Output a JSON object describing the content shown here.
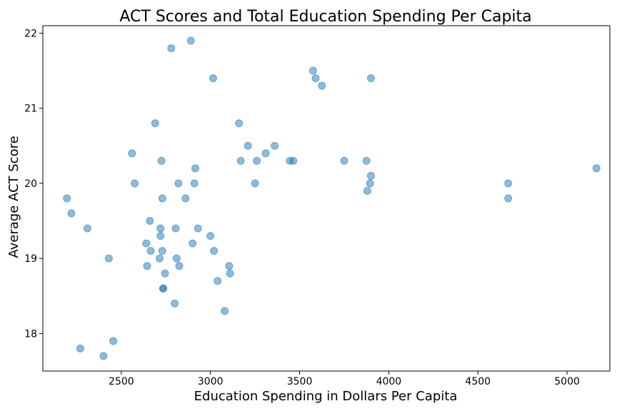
{
  "chart_data": {
    "type": "scatter",
    "title": "ACT Scores and Total Education Spending Per Capita",
    "xlabel": "Education Spending in Dollars Per Capita",
    "ylabel": "Average ACT Score",
    "xlim": [
      2060,
      5240
    ],
    "ylim": [
      17.5,
      22.1
    ],
    "xticks": [
      2500,
      3000,
      3500,
      4000,
      4500,
      5000
    ],
    "yticks": [
      18,
      19,
      20,
      21,
      22
    ],
    "grid": false,
    "legend": "none",
    "marker_color": "#1f77b4",
    "x": [
      2195,
      2220,
      2310,
      2430,
      2455,
      2270,
      2400,
      2560,
      2575,
      2640,
      2645,
      2660,
      2665,
      2690,
      2720,
      2720,
      2715,
      2725,
      2730,
      2730,
      2735,
      2735,
      2745,
      2780,
      2800,
      2805,
      2810,
      2820,
      2825,
      2860,
      2890,
      2900,
      2910,
      2915,
      2930,
      3000,
      3015,
      3020,
      3040,
      3080,
      3105,
      3110,
      3160,
      3170,
      3210,
      3250,
      3260,
      3310,
      3360,
      3445,
      3465,
      3575,
      3590,
      3625,
      3750,
      3875,
      3880,
      3895,
      3900,
      3900,
      4670,
      4670,
      5165
    ],
    "y": [
      19.8,
      19.6,
      19.4,
      19.0,
      17.9,
      17.8,
      17.7,
      20.4,
      20.0,
      19.2,
      18.9,
      19.5,
      19.1,
      20.8,
      19.3,
      19.4,
      19.0,
      20.3,
      19.8,
      19.1,
      18.6,
      18.6,
      18.8,
      21.8,
      18.4,
      19.4,
      19.0,
      20.0,
      18.9,
      19.8,
      21.9,
      19.2,
      20.0,
      20.2,
      19.4,
      19.3,
      21.4,
      19.1,
      18.7,
      18.3,
      18.9,
      18.8,
      20.8,
      20.3,
      20.5,
      20.0,
      20.3,
      20.4,
      20.5,
      20.3,
      20.3,
      21.5,
      21.4,
      21.3,
      20.3,
      20.3,
      19.9,
      20.0,
      20.1,
      21.4,
      19.8,
      20.0,
      20.2
    ]
  }
}
